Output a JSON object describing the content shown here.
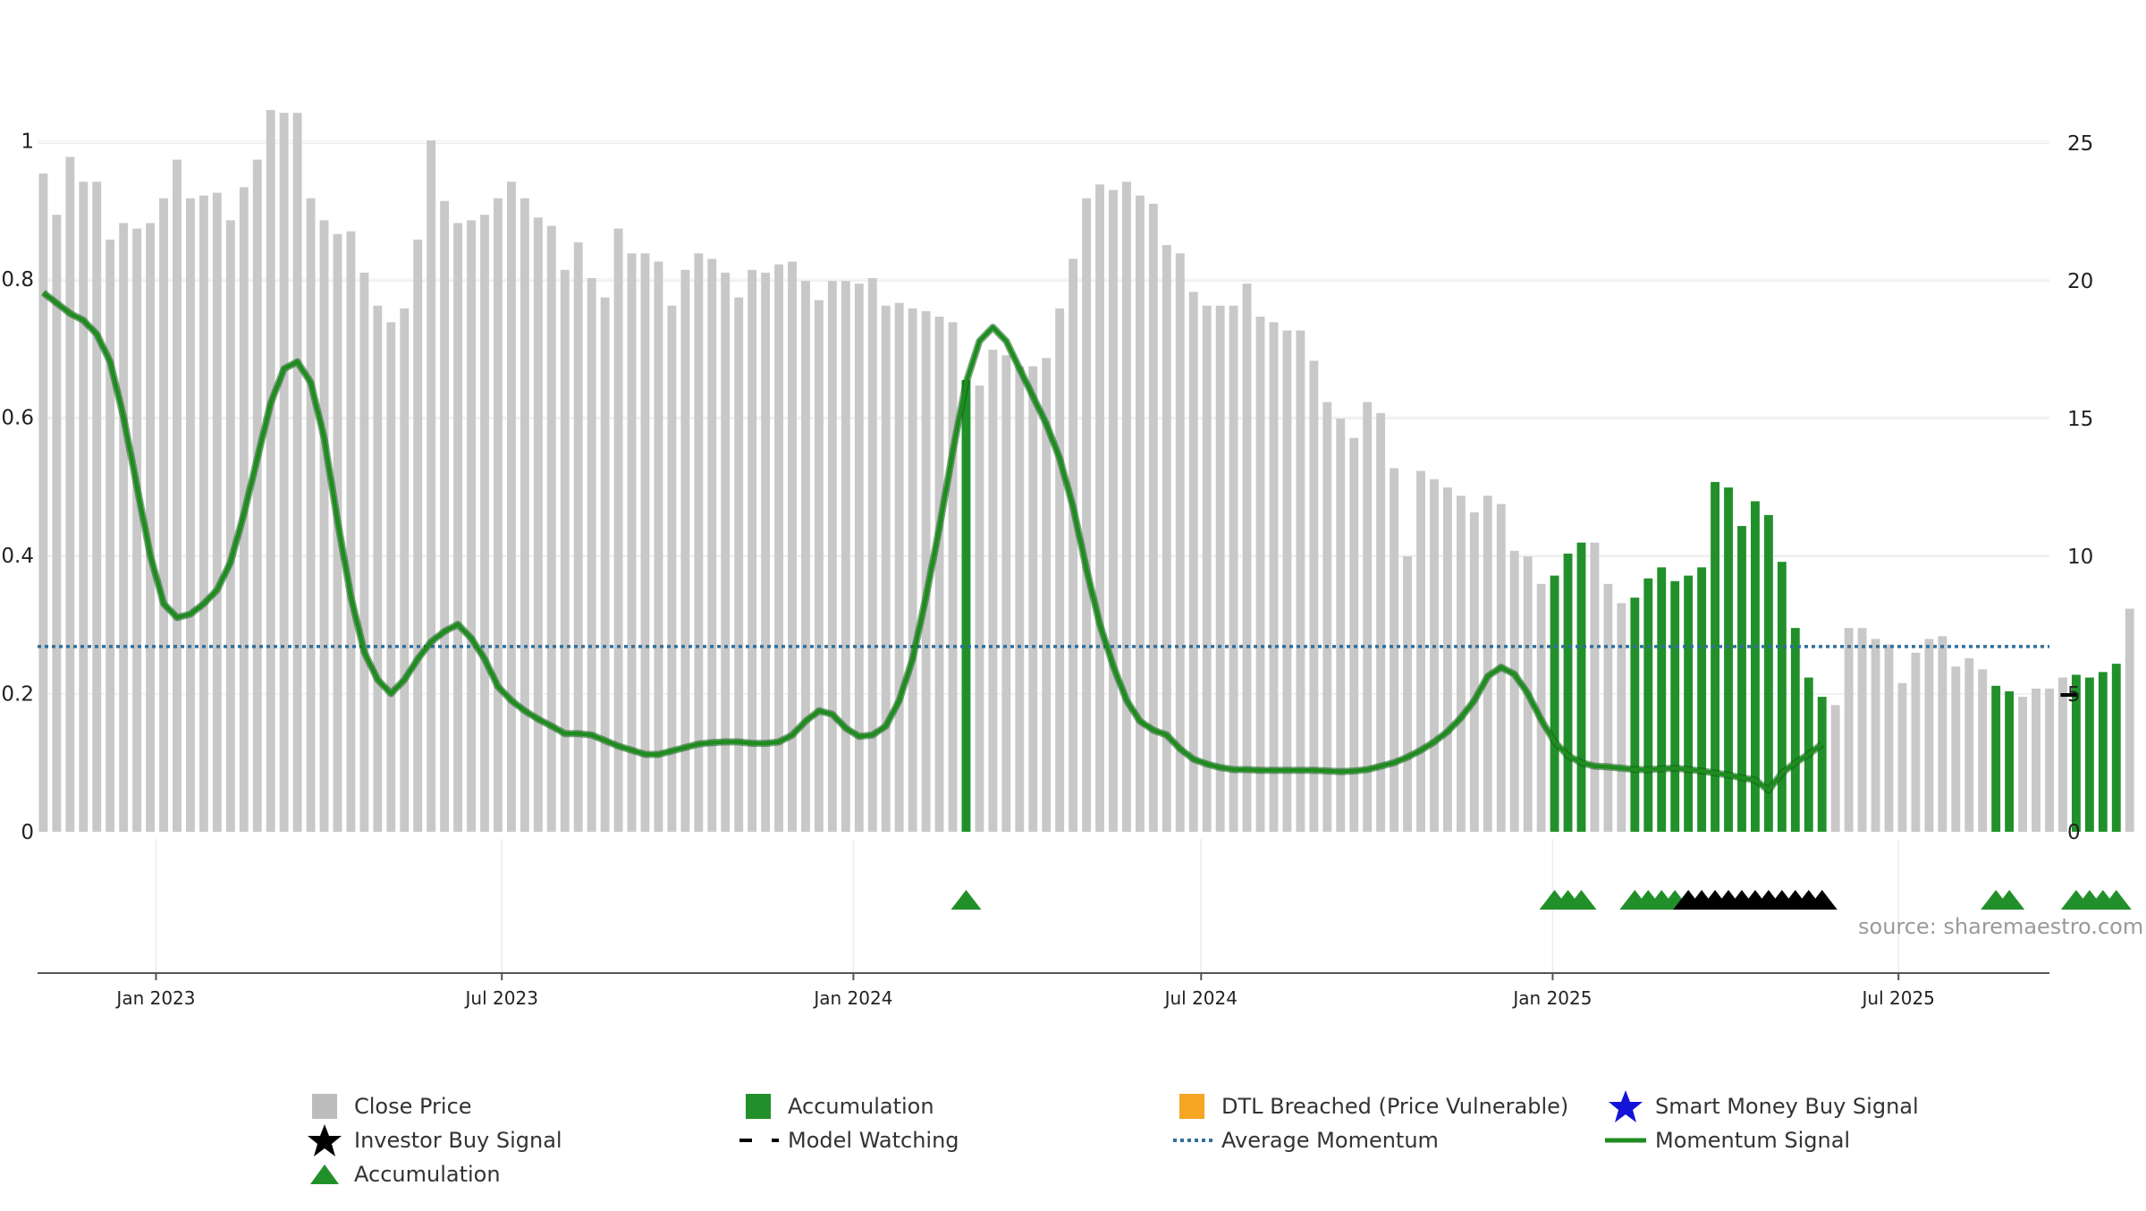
{
  "chart_data": {
    "type": "bar",
    "title": "",
    "xlabel": "",
    "ylabel": "",
    "grid": true,
    "legend_placement": "bottom",
    "left_axis": {
      "ylim": [
        0,
        1.1
      ],
      "ticks": [
        {
          "v": 0,
          "label": "0"
        },
        {
          "v": 0.2,
          "label": "0.2"
        },
        {
          "v": 0.4,
          "label": "0.4"
        },
        {
          "v": 0.6,
          "label": "0.6"
        },
        {
          "v": 0.8,
          "label": "0.8"
        },
        {
          "v": 1.0,
          "label": "1"
        }
      ]
    },
    "right_axis": {
      "ylim": [
        0,
        27.6
      ],
      "ticks": [
        {
          "v": 0,
          "label": "0"
        },
        {
          "v": 5,
          "label": "5"
        },
        {
          "v": 10,
          "label": "10"
        },
        {
          "v": 15,
          "label": "15"
        },
        {
          "v": 20,
          "label": "20"
        },
        {
          "v": 25,
          "label": "25"
        }
      ]
    },
    "x_range": [
      "2022-10-31",
      "2025-09-18"
    ],
    "x_ticks": [
      {
        "date": "2023-01-01",
        "label": "Jan 2023"
      },
      {
        "date": "2023-07-01",
        "label": "Jul 2023"
      },
      {
        "date": "2024-01-01",
        "label": "Jan 2024"
      },
      {
        "date": "2024-07-01",
        "label": "Jul 2024"
      },
      {
        "date": "2025-01-01",
        "label": "Jan 2025"
      },
      {
        "date": "2025-07-01",
        "label": "Jul 2025"
      }
    ],
    "bar_start_date": "2022-11-03",
    "bar_interval_days": 7,
    "close_price": [
      23.9,
      22.4,
      24.5,
      23.6,
      23.6,
      21.5,
      22.1,
      21.9,
      22.1,
      23.0,
      24.4,
      23.0,
      23.1,
      23.2,
      22.2,
      23.4,
      24.4,
      26.2,
      26.1,
      26.1,
      23.0,
      22.2,
      21.7,
      21.8,
      20.3,
      19.1,
      18.5,
      19.0,
      21.5,
      25.1,
      22.9,
      22.1,
      22.2,
      22.4,
      23.0,
      23.6,
      23.0,
      22.3,
      22.0,
      20.4,
      21.4,
      20.1,
      19.4,
      21.9,
      21.0,
      21.0,
      20.7,
      19.1,
      20.4,
      21.0,
      20.8,
      20.3,
      19.4,
      20.4,
      20.3,
      20.6,
      20.7,
      20.0,
      19.3,
      20.0,
      20.0,
      19.9,
      20.1,
      19.1,
      19.2,
      19.0,
      18.9,
      18.7,
      18.5,
      16.4,
      16.2,
      17.5,
      17.3,
      16.9,
      16.9,
      17.2,
      19.0,
      20.8,
      23.0,
      23.5,
      23.3,
      23.6,
      23.1,
      22.8,
      21.3,
      21.0,
      19.6,
      19.1,
      19.1,
      19.1,
      19.9,
      18.7,
      18.5,
      18.2,
      18.2,
      17.1,
      15.6,
      15.0,
      14.3,
      15.6,
      15.2,
      13.2,
      10.0,
      13.1,
      12.8,
      12.5,
      12.2,
      11.6,
      12.2,
      11.9,
      10.2,
      10.0,
      9.0,
      9.3,
      10.1,
      10.5,
      10.5,
      9.0,
      8.3,
      8.5,
      9.2,
      9.6,
      9.1,
      9.3,
      9.6,
      12.7,
      12.5,
      11.1,
      12.0,
      11.5,
      9.8,
      7.4,
      5.6,
      4.9,
      4.6,
      7.4,
      7.4,
      7.0,
      6.8,
      5.4,
      6.5,
      7.0,
      7.1,
      6.0,
      6.3,
      5.9,
      5.3,
      5.1,
      4.9,
      5.2,
      5.2,
      5.6,
      5.7,
      5.6,
      5.8,
      6.1,
      8.1
    ],
    "accumulation_bars": [
      69,
      113,
      114,
      115,
      119,
      120,
      121,
      122,
      123,
      124,
      125,
      126,
      127,
      128,
      129,
      130,
      131,
      132,
      133,
      146,
      147,
      152,
      153,
      154,
      155
    ],
    "momentum_signal": [
      0.78,
      0.765,
      0.75,
      0.74,
      0.72,
      0.68,
      0.6,
      0.5,
      0.4,
      0.33,
      0.31,
      0.315,
      0.33,
      0.35,
      0.39,
      0.46,
      0.54,
      0.62,
      0.67,
      0.68,
      0.65,
      0.57,
      0.45,
      0.34,
      0.26,
      0.22,
      0.2,
      0.22,
      0.25,
      0.275,
      0.29,
      0.3,
      0.28,
      0.25,
      0.21,
      0.19,
      0.175,
      0.163,
      0.153,
      0.142,
      0.142,
      0.14,
      0.132,
      0.124,
      0.118,
      0.112,
      0.112,
      0.117,
      0.122,
      0.127,
      0.129,
      0.13,
      0.13,
      0.128,
      0.128,
      0.13,
      0.14,
      0.16,
      0.175,
      0.17,
      0.15,
      0.138,
      0.14,
      0.153,
      0.19,
      0.25,
      0.34,
      0.44,
      0.55,
      0.65,
      0.71,
      0.73,
      0.71,
      0.67,
      0.63,
      0.59,
      0.54,
      0.47,
      0.38,
      0.3,
      0.24,
      0.19,
      0.16,
      0.147,
      0.14,
      0.12,
      0.105,
      0.098,
      0.093,
      0.09,
      0.09,
      0.089,
      0.089,
      0.089,
      0.089,
      0.089,
      0.088,
      0.087,
      0.088,
      0.09,
      0.095,
      0.1,
      0.108,
      0.118,
      0.13,
      0.145,
      0.165,
      0.19,
      0.225,
      0.238,
      0.228,
      0.2,
      0.162,
      0.13,
      0.11,
      0.1,
      0.095,
      0.094,
      0.092,
      0.09,
      0.09,
      0.091,
      0.092,
      0.09,
      0.088,
      0.085,
      0.082,
      0.078,
      0.075,
      0.06,
      0.085,
      0.1,
      0.112,
      0.127
    ],
    "average_momentum": 0.268,
    "model_watching": {
      "index": 151.5,
      "value": 0.198
    },
    "markers": {
      "accumulation_triangles": [
        69,
        113,
        114,
        115,
        119,
        120,
        121,
        122,
        146,
        147,
        152,
        153,
        154,
        155
      ],
      "investor_buy_stars": [
        123,
        124,
        125,
        126,
        127,
        128,
        129,
        130,
        131,
        132,
        133
      ]
    },
    "colors": {
      "close_price": "#c8c8c8",
      "accumulation": "#22902a",
      "momentum": "#1e8c1e",
      "average_momentum": "#2f6f9f",
      "dtl_breached": "#f5a623",
      "smart_money": "#1414d8",
      "investor_buy": "#000000",
      "grid": "#ececec"
    },
    "legend": [
      {
        "symbol": "gray-square-icon",
        "color": "#bcbcbc",
        "label": "Close Price"
      },
      {
        "symbol": "green-square-icon",
        "color": "#22902a",
        "label": "Accumulation"
      },
      {
        "symbol": "orange-square-icon",
        "color": "#f5a623",
        "label": "DTL Breached (Price Vulnerable)"
      },
      {
        "symbol": "blue-star-icon",
        "color": "#1414d8",
        "label": "Smart Money Buy Signal"
      },
      {
        "symbol": "black-star-icon",
        "color": "#000000",
        "label": "Investor Buy Signal"
      },
      {
        "symbol": "black-dash-icon",
        "color": "#000000",
        "label": "Model Watching"
      },
      {
        "symbol": "blue-dotted-line-icon",
        "color": "#2f6f9f",
        "label": "Average Momentum"
      },
      {
        "symbol": "green-line-icon",
        "color": "#1e8c1e",
        "label": "Momentum Signal"
      },
      {
        "symbol": "green-triangle-icon",
        "color": "#22902a",
        "label": "Accumulation"
      }
    ],
    "source": "source: sharemaestro.com"
  }
}
